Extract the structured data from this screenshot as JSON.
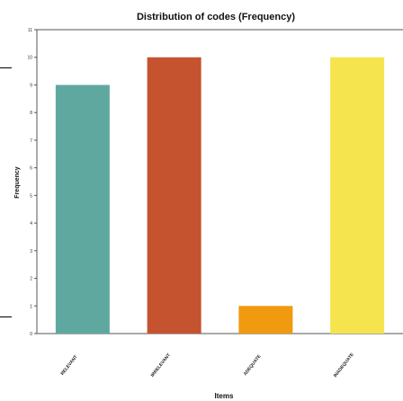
{
  "chart_data": {
    "type": "bar",
    "title": "Distribution of codes (Frequency)",
    "xlabel": "Items",
    "ylabel": "Frequency",
    "categories": [
      "RELEVANT",
      "IRRELEVANT",
      "ADEQUATE",
      "INADEQUATE"
    ],
    "values": [
      9,
      10,
      1,
      10
    ],
    "colors": [
      "#5fa8a0",
      "#c5532f",
      "#f09a10",
      "#f5e44e"
    ],
    "ylim": [
      0,
      11
    ],
    "yticks": [
      0,
      1,
      2,
      3,
      4,
      5,
      6,
      7,
      8,
      9,
      10,
      11
    ],
    "grid": false,
    "legend": "none"
  }
}
